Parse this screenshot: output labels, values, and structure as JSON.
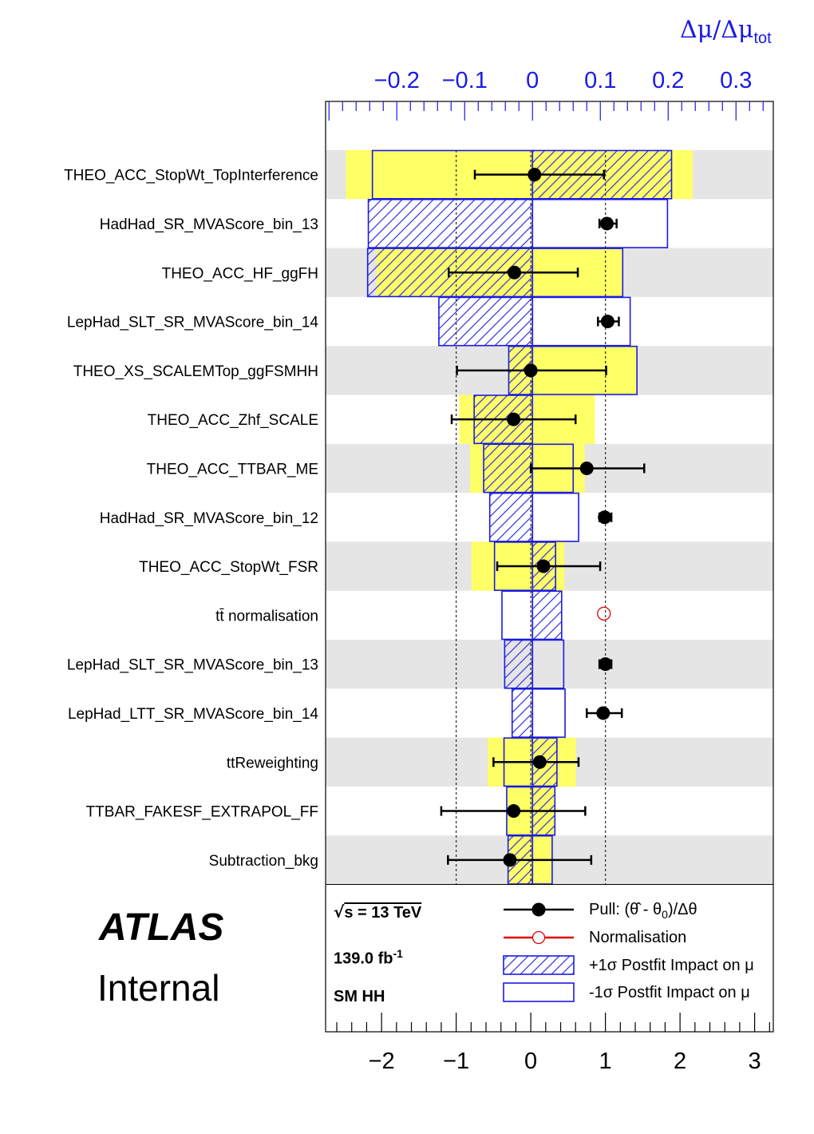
{
  "chart_data": {
    "type": "ranking",
    "top_axis": {
      "title": "Δμ/Δμ",
      "title_subscript": "tot",
      "range": [
        -0.305,
        0.355
      ],
      "ticks": [
        -0.2,
        -0.1,
        0,
        0.1,
        0.2,
        0.3
      ],
      "tick_labels": [
        "−0.2",
        "−0.1",
        "0",
        "0.1",
        "0.2",
        "0.3"
      ],
      "color": "#1a1ae6"
    },
    "bottom_axis": {
      "range": [
        -2.75,
        3.25
      ],
      "ticks": [
        -2,
        -1,
        0,
        1,
        2,
        3
      ],
      "tick_labels": [
        "−2",
        "−1",
        "0",
        "1",
        "2",
        "3"
      ]
    },
    "reference_lines": [
      -1,
      0,
      1
    ],
    "parameters": [
      {
        "name": "THEO_ACC_StopWt_TopInterference",
        "prefit_lo": -0.275,
        "prefit_hi": 0.236,
        "plus_impact": 0.205,
        "minus_impact": -0.236,
        "pull": 0.05,
        "pull_err_lo": -0.8,
        "pull_err_hi": 0.93,
        "normalisation": false
      },
      {
        "name": "HadHad_SR_MVAScore_bin_13",
        "prefit_lo": 0,
        "prefit_hi": 0,
        "plus_impact": -0.242,
        "minus_impact": 0.199,
        "pull": 1.02,
        "pull_err_lo": -0.1,
        "pull_err_hi": 0.13,
        "normalisation": false
      },
      {
        "name": "THEO_ACC_HF_ggFH",
        "prefit_lo": -0.23,
        "prefit_hi": 0.133,
        "plus_impact": -0.243,
        "minus_impact": 0.133,
        "pull": -0.22,
        "pull_err_lo": -0.88,
        "pull_err_hi": 0.85,
        "normalisation": false
      },
      {
        "name": "LepHad_SLT_SR_MVAScore_bin_14",
        "prefit_lo": 0,
        "prefit_hi": 0,
        "plus_impact": -0.138,
        "minus_impact": 0.144,
        "pull": 1.03,
        "pull_err_lo": -0.13,
        "pull_err_hi": 0.15,
        "normalisation": false
      },
      {
        "name": "THEO_XS_SCALEMTop_ggFSMHH",
        "prefit_lo": -0.035,
        "prefit_hi": 0.154,
        "plus_impact": -0.035,
        "minus_impact": 0.154,
        "pull": 0.0,
        "pull_err_lo": -0.99,
        "pull_err_hi": 1.01,
        "normalisation": false
      },
      {
        "name": "THEO_ACC_Zhf_SCALE",
        "prefit_lo": -0.108,
        "prefit_hi": 0.092,
        "plus_impact": -0.086,
        "minus_impact": 0.0,
        "pull": -0.23,
        "pull_err_lo": -0.83,
        "pull_err_hi": 0.83,
        "normalisation": false
      },
      {
        "name": "THEO_ACC_TTBAR_ME",
        "prefit_lo": -0.092,
        "prefit_hi": 0.077,
        "plus_impact": -0.072,
        "minus_impact": 0.06,
        "pull": 0.75,
        "pull_err_lo": -0.75,
        "pull_err_hi": 0.77,
        "normalisation": false
      },
      {
        "name": "HadHad_SR_MVAScore_bin_12",
        "prefit_lo": 0,
        "prefit_hi": 0,
        "plus_impact": -0.063,
        "minus_impact": 0.068,
        "pull": 0.99,
        "pull_err_lo": -0.07,
        "pull_err_hi": 0.09,
        "normalisation": false
      },
      {
        "name": "THEO_ACC_StopWt_FSR",
        "prefit_lo": -0.09,
        "prefit_hi": 0.047,
        "plus_impact": 0.034,
        "minus_impact": -0.056,
        "pull": 0.17,
        "pull_err_lo": -0.62,
        "pull_err_hi": 0.76,
        "normalisation": false
      },
      {
        "name": "tt̄ normalisation",
        "prefit_lo": 0,
        "prefit_hi": 0,
        "plus_impact": 0.043,
        "minus_impact": -0.045,
        "pull": 0.98,
        "pull_err_lo": 0,
        "pull_err_hi": 0,
        "normalisation": true
      },
      {
        "name": "LepHad_SLT_SR_MVAScore_bin_13",
        "prefit_lo": 0,
        "prefit_hi": 0,
        "plus_impact": -0.041,
        "minus_impact": 0.046,
        "pull": 1.0,
        "pull_err_lo": -0.08,
        "pull_err_hi": 0.08,
        "normalisation": false
      },
      {
        "name": "LepHad_LTT_SR_MVAScore_bin_14",
        "prefit_lo": 0,
        "prefit_hi": 0,
        "plus_impact": -0.03,
        "minus_impact": 0.048,
        "pull": 0.97,
        "pull_err_lo": -0.22,
        "pull_err_hi": 0.25,
        "normalisation": false
      },
      {
        "name": "ttReweighting",
        "prefit_lo": -0.066,
        "prefit_hi": 0.064,
        "plus_impact": 0.036,
        "minus_impact": -0.042,
        "pull": 0.12,
        "pull_err_lo": -0.62,
        "pull_err_hi": 0.52,
        "normalisation": false
      },
      {
        "name": "TTBAR_FAKESF_EXTRAPOL_FF",
        "prefit_lo": -0.038,
        "prefit_hi": 0.033,
        "plus_impact": 0.033,
        "minus_impact": -0.038,
        "pull": -0.23,
        "pull_err_lo": -0.97,
        "pull_err_hi": 0.96,
        "normalisation": false
      },
      {
        "name": "Subtraction_bkg",
        "prefit_lo": -0.036,
        "prefit_hi": 0.029,
        "plus_impact": -0.036,
        "minus_impact": 0.029,
        "pull": -0.28,
        "pull_err_lo": -0.83,
        "pull_err_hi": 1.09,
        "normalisation": false
      }
    ],
    "legend": {
      "pull": "Pull: (θ̂ - θ",
      "pull_sub": "0",
      "pull_tail": ")/Δθ",
      "normalisation": "Normalisation",
      "plus": "+1σ Postfit Impact on μ",
      "minus": "-1σ Postfit Impact on μ"
    },
    "colors": {
      "prefit_band": "#ffff66",
      "impact": "#1a1ae6",
      "stripe": "#e5e5e5",
      "normalisation": "#e00000"
    }
  },
  "labels": {
    "experiment": "ATLAS",
    "status": "Internal",
    "sqrt_s": "s = 13 TeV",
    "lumi": "139.0 fb",
    "lumi_exp": "-1",
    "process": "SM HH"
  }
}
